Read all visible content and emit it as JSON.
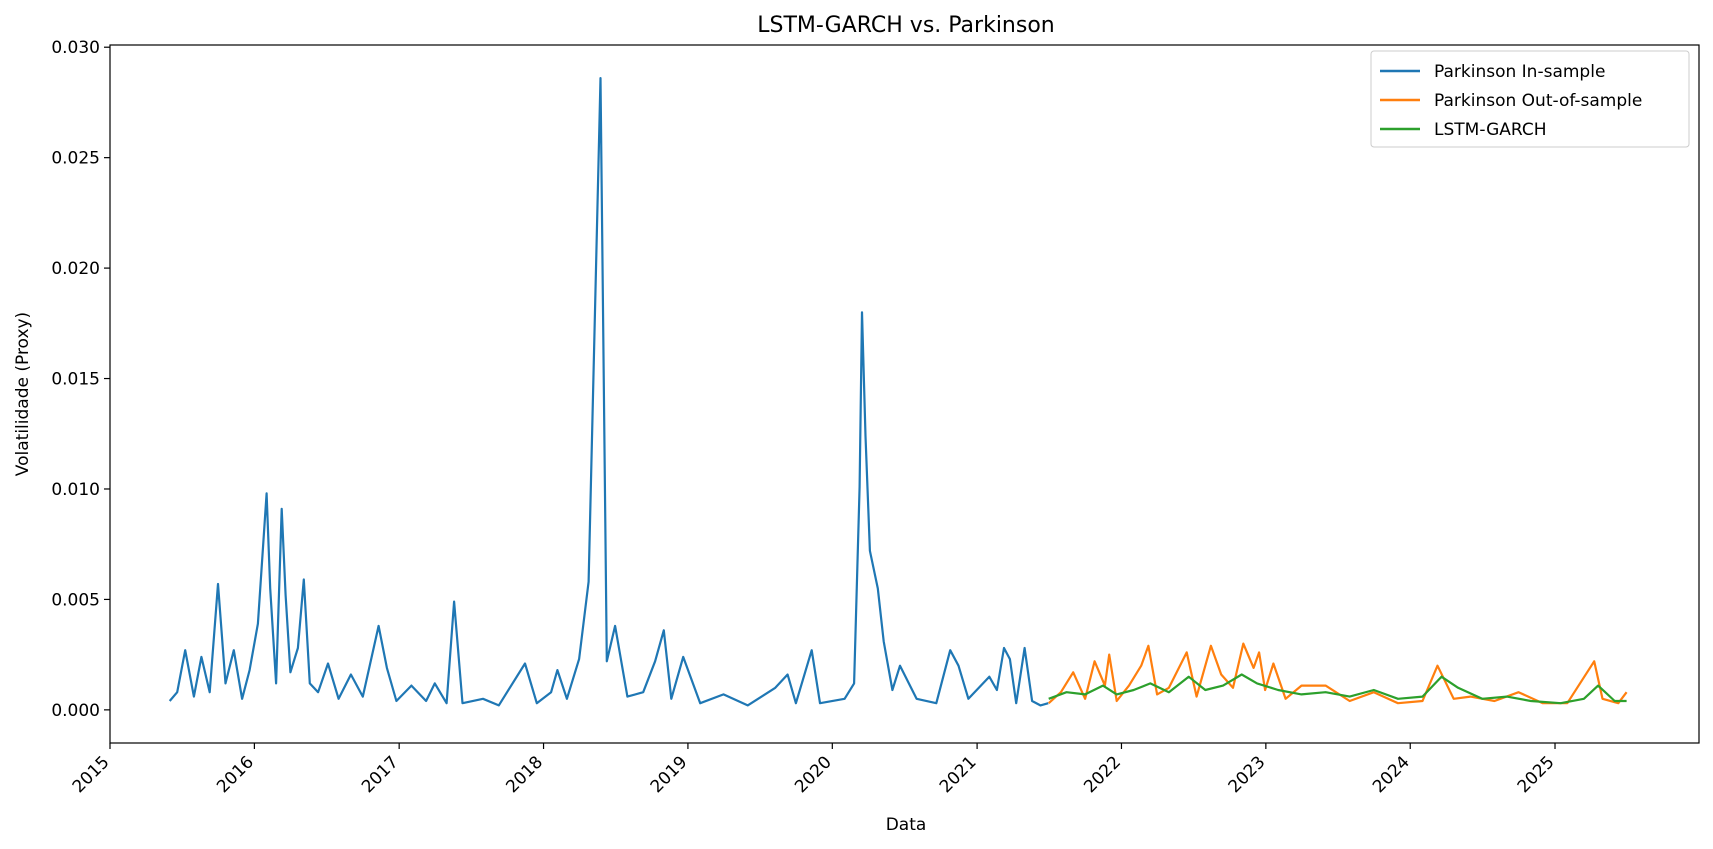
{
  "chart_data": {
    "type": "line",
    "title": "LSTM-GARCH vs. Parkinson",
    "xlabel": "Data",
    "ylabel": "Volatilidade (Proxy)",
    "x_range": [
      "2015-01-01",
      "2025-12-31"
    ],
    "ylim": [
      -0.0015,
      0.0301
    ],
    "x_ticks": [
      "2015",
      "2016",
      "2017",
      "2018",
      "2019",
      "2020",
      "2021",
      "2022",
      "2023",
      "2024",
      "2025"
    ],
    "y_ticks": [
      "0.000",
      "0.005",
      "0.010",
      "0.015",
      "0.020",
      "0.025",
      "0.030"
    ],
    "grid": false,
    "legend_position": "top-right",
    "series": [
      {
        "name": "Parkinson In-sample",
        "color": "#1f77b4",
        "points": [
          [
            "2015-06-01",
            0.0004
          ],
          [
            "2015-06-20",
            0.0008
          ],
          [
            "2015-07-10",
            0.0027
          ],
          [
            "2015-08-01",
            0.0006
          ],
          [
            "2015-08-20",
            0.0024
          ],
          [
            "2015-09-10",
            0.0008
          ],
          [
            "2015-10-01",
            0.0057
          ],
          [
            "2015-10-20",
            0.0012
          ],
          [
            "2015-11-10",
            0.0027
          ],
          [
            "2015-12-01",
            0.0005
          ],
          [
            "2015-12-20",
            0.0018
          ],
          [
            "2016-01-10",
            0.0039
          ],
          [
            "2016-02-01",
            0.0098
          ],
          [
            "2016-02-10",
            0.0055
          ],
          [
            "2016-02-25",
            0.0012
          ],
          [
            "2016-03-10",
            0.0091
          ],
          [
            "2016-03-20",
            0.0052
          ],
          [
            "2016-04-01",
            0.0017
          ],
          [
            "2016-04-20",
            0.0028
          ],
          [
            "2016-05-05",
            0.0059
          ],
          [
            "2016-05-20",
            0.0012
          ],
          [
            "2016-06-10",
            0.0008
          ],
          [
            "2016-07-05",
            0.0021
          ],
          [
            "2016-08-01",
            0.0005
          ],
          [
            "2016-09-01",
            0.0016
          ],
          [
            "2016-10-01",
            0.0006
          ],
          [
            "2016-11-10",
            0.0038
          ],
          [
            "2016-12-01",
            0.0019
          ],
          [
            "2016-12-25",
            0.0004
          ],
          [
            "2017-02-01",
            0.0011
          ],
          [
            "2017-03-10",
            0.0004
          ],
          [
            "2017-04-01",
            0.0012
          ],
          [
            "2017-05-01",
            0.0003
          ],
          [
            "2017-05-20",
            0.0049
          ],
          [
            "2017-06-10",
            0.0003
          ],
          [
            "2017-08-01",
            0.0005
          ],
          [
            "2017-09-10",
            0.0002
          ],
          [
            "2017-11-15",
            0.0021
          ],
          [
            "2017-12-15",
            0.0003
          ],
          [
            "2018-01-20",
            0.0008
          ],
          [
            "2018-02-05",
            0.0018
          ],
          [
            "2018-03-01",
            0.0005
          ],
          [
            "2018-04-01",
            0.0023
          ],
          [
            "2018-04-25",
            0.0058
          ],
          [
            "2018-05-25",
            0.0286
          ],
          [
            "2018-06-10",
            0.0022
          ],
          [
            "2018-07-01",
            0.0038
          ],
          [
            "2018-08-01",
            0.0006
          ],
          [
            "2018-09-10",
            0.0008
          ],
          [
            "2018-10-10",
            0.0022
          ],
          [
            "2018-11-01",
            0.0036
          ],
          [
            "2018-11-20",
            0.0005
          ],
          [
            "2018-12-20",
            0.0024
          ],
          [
            "2019-02-01",
            0.0003
          ],
          [
            "2019-04-01",
            0.0007
          ],
          [
            "2019-06-01",
            0.0002
          ],
          [
            "2019-08-10",
            0.001
          ],
          [
            "2019-09-10",
            0.0016
          ],
          [
            "2019-10-01",
            0.0003
          ],
          [
            "2019-11-10",
            0.0027
          ],
          [
            "2019-12-01",
            0.0003
          ],
          [
            "2020-02-01",
            0.0005
          ],
          [
            "2020-02-25",
            0.0012
          ],
          [
            "2020-03-10",
            0.0101
          ],
          [
            "2020-03-16",
            0.018
          ],
          [
            "2020-03-25",
            0.0124
          ],
          [
            "2020-04-05",
            0.0072
          ],
          [
            "2020-04-25",
            0.0055
          ],
          [
            "2020-05-10",
            0.0031
          ],
          [
            "2020-06-01",
            0.0009
          ],
          [
            "2020-06-20",
            0.002
          ],
          [
            "2020-08-01",
            0.0005
          ],
          [
            "2020-09-20",
            0.0003
          ],
          [
            "2020-10-25",
            0.0027
          ],
          [
            "2020-11-15",
            0.002
          ],
          [
            "2020-12-10",
            0.0005
          ],
          [
            "2021-02-01",
            0.0015
          ],
          [
            "2021-02-20",
            0.0009
          ],
          [
            "2021-03-10",
            0.0028
          ],
          [
            "2021-03-25",
            0.0023
          ],
          [
            "2021-04-10",
            0.0003
          ],
          [
            "2021-05-01",
            0.0028
          ],
          [
            "2021-05-20",
            0.0004
          ],
          [
            "2021-06-10",
            0.0002
          ],
          [
            "2021-06-30",
            0.0003
          ]
        ]
      },
      {
        "name": "Parkinson Out-of-sample",
        "color": "#ff7f0e",
        "points": [
          [
            "2021-07-01",
            0.0003
          ],
          [
            "2021-08-01",
            0.0008
          ],
          [
            "2021-09-01",
            0.0017
          ],
          [
            "2021-10-01",
            0.0005
          ],
          [
            "2021-10-25",
            0.0022
          ],
          [
            "2021-11-20",
            0.0011
          ],
          [
            "2021-12-01",
            0.0025
          ],
          [
            "2021-12-20",
            0.0004
          ],
          [
            "2022-01-20",
            0.0011
          ],
          [
            "2022-02-20",
            0.002
          ],
          [
            "2022-03-10",
            0.0029
          ],
          [
            "2022-04-01",
            0.0007
          ],
          [
            "2022-05-01",
            0.001
          ],
          [
            "2022-06-15",
            0.0026
          ],
          [
            "2022-07-10",
            0.0006
          ],
          [
            "2022-08-15",
            0.0029
          ],
          [
            "2022-09-10",
            0.0016
          ],
          [
            "2022-10-10",
            0.001
          ],
          [
            "2022-11-05",
            0.003
          ],
          [
            "2022-12-01",
            0.0019
          ],
          [
            "2022-12-15",
            0.0026
          ],
          [
            "2022-12-30",
            0.0009
          ],
          [
            "2023-01-20",
            0.0021
          ],
          [
            "2023-02-20",
            0.0005
          ],
          [
            "2023-04-01",
            0.0011
          ],
          [
            "2023-06-01",
            0.0011
          ],
          [
            "2023-08-01",
            0.0004
          ],
          [
            "2023-10-01",
            0.0008
          ],
          [
            "2023-12-01",
            0.0003
          ],
          [
            "2024-02-01",
            0.0004
          ],
          [
            "2024-03-10",
            0.002
          ],
          [
            "2024-04-20",
            0.0005
          ],
          [
            "2024-06-01",
            0.0006
          ],
          [
            "2024-08-01",
            0.0004
          ],
          [
            "2024-10-01",
            0.0008
          ],
          [
            "2024-12-01",
            0.0003
          ],
          [
            "2025-02-01",
            0.0003
          ],
          [
            "2025-04-10",
            0.0022
          ],
          [
            "2025-05-01",
            0.0005
          ],
          [
            "2025-06-10",
            0.0003
          ],
          [
            "2025-07-01",
            0.0008
          ]
        ]
      },
      {
        "name": "LSTM-GARCH",
        "color": "#2ca02c",
        "points": [
          [
            "2021-07-01",
            0.0005
          ],
          [
            "2021-08-15",
            0.0008
          ],
          [
            "2021-10-01",
            0.0007
          ],
          [
            "2021-11-15",
            0.0011
          ],
          [
            "2021-12-20",
            0.0007
          ],
          [
            "2022-02-01",
            0.0009
          ],
          [
            "2022-03-15",
            0.0012
          ],
          [
            "2022-05-01",
            0.0008
          ],
          [
            "2022-06-20",
            0.0015
          ],
          [
            "2022-08-01",
            0.0009
          ],
          [
            "2022-09-15",
            0.0011
          ],
          [
            "2022-11-01",
            0.0016
          ],
          [
            "2022-12-10",
            0.0012
          ],
          [
            "2023-02-01",
            0.0009
          ],
          [
            "2023-04-01",
            0.0007
          ],
          [
            "2023-06-01",
            0.0008
          ],
          [
            "2023-08-01",
            0.0006
          ],
          [
            "2023-10-01",
            0.0009
          ],
          [
            "2023-12-01",
            0.0005
          ],
          [
            "2024-02-01",
            0.0006
          ],
          [
            "2024-03-20",
            0.0015
          ],
          [
            "2024-05-01",
            0.001
          ],
          [
            "2024-07-01",
            0.0005
          ],
          [
            "2024-09-01",
            0.0006
          ],
          [
            "2024-11-01",
            0.0004
          ],
          [
            "2025-01-15",
            0.0003
          ],
          [
            "2025-03-15",
            0.0005
          ],
          [
            "2025-04-20",
            0.0011
          ],
          [
            "2025-06-01",
            0.0004
          ],
          [
            "2025-07-01",
            0.0004
          ]
        ]
      }
    ]
  }
}
